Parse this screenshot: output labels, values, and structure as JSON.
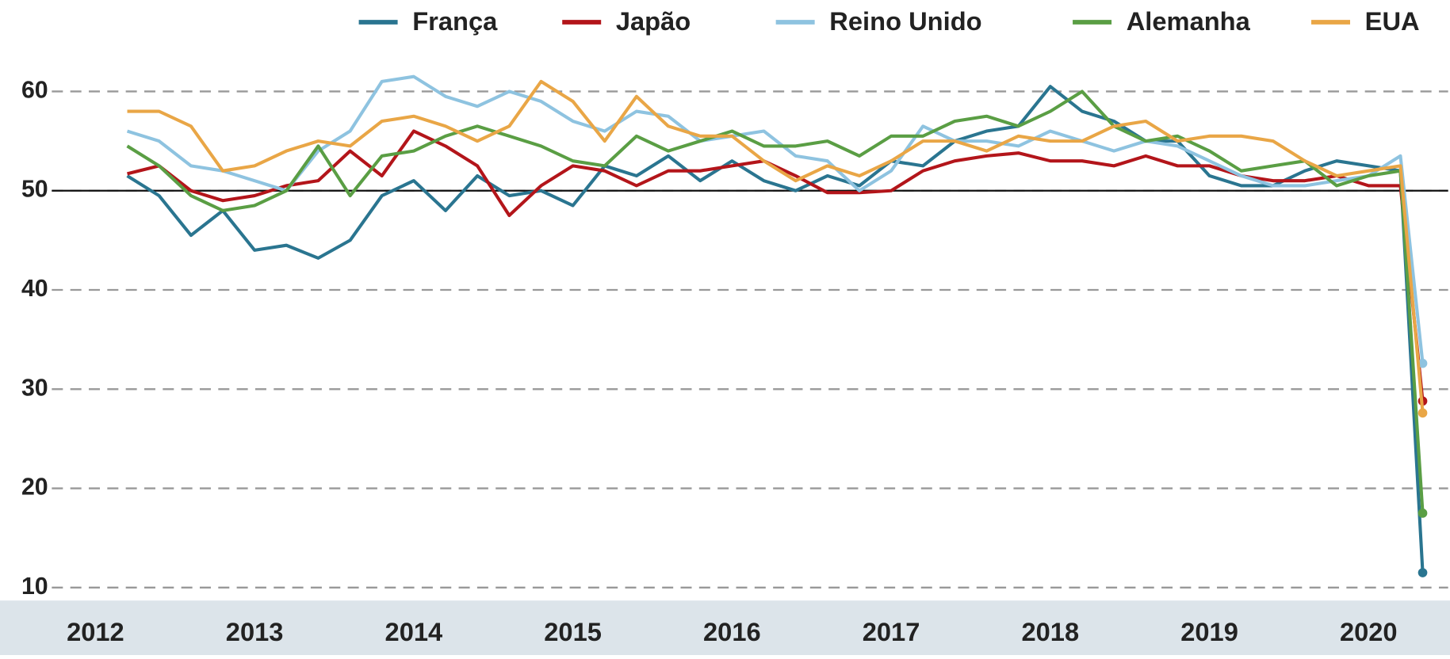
{
  "chart_data": {
    "type": "line",
    "x": [
      2012.2,
      2012.4,
      2012.6,
      2012.8,
      2013.0,
      2013.2,
      2013.4,
      2013.6,
      2013.8,
      2014.0,
      2014.2,
      2014.4,
      2014.6,
      2014.8,
      2015.0,
      2015.2,
      2015.4,
      2015.6,
      2015.8,
      2016.0,
      2016.2,
      2016.4,
      2016.6,
      2016.8,
      2017.0,
      2017.2,
      2017.4,
      2017.6,
      2017.8,
      2018.0,
      2018.2,
      2018.4,
      2018.6,
      2018.8,
      2019.0,
      2019.2,
      2019.4,
      2019.6,
      2019.8,
      2020.0,
      2020.2,
      2020.34
    ],
    "series": [
      {
        "name": "França",
        "color": "#2a7590",
        "values": [
          51.5,
          49.5,
          45.5,
          48,
          44,
          44.5,
          43.2,
          45,
          49.5,
          51,
          48,
          51.5,
          49.5,
          50,
          48.5,
          52.5,
          51.5,
          53.5,
          51,
          53,
          51,
          50,
          51.5,
          50.5,
          53,
          52.5,
          55,
          56,
          56.5,
          60.5,
          58,
          57,
          55,
          55,
          51.5,
          50.5,
          50.5,
          52,
          53,
          52.5,
          52,
          11.5
        ]
      },
      {
        "name": "Japão",
        "color": "#b3151a",
        "values": [
          51.7,
          52.5,
          50,
          49,
          49.5,
          50.5,
          51,
          54,
          51.5,
          56,
          54.5,
          52.5,
          47.5,
          50.5,
          52.5,
          52,
          50.5,
          52,
          52,
          52.5,
          53,
          51.5,
          49.8,
          49.8,
          50,
          52,
          53,
          53.5,
          53.8,
          53,
          53,
          52.5,
          53.5,
          52.5,
          52.5,
          51.5,
          51,
          51,
          51.5,
          50.5,
          50.5,
          28.8
        ]
      },
      {
        "name": "Reino Unido",
        "color": "#8ec3e0",
        "values": [
          56,
          55,
          52.5,
          52,
          51,
          50,
          54,
          56,
          61,
          61.5,
          59.5,
          58.5,
          60,
          59,
          57,
          56,
          58,
          57.5,
          55,
          55.5,
          56,
          53.5,
          53,
          50,
          52,
          56.5,
          55,
          55,
          54.5,
          56,
          55,
          54,
          55,
          54.5,
          53,
          51.5,
          50.5,
          50.5,
          51,
          51.5,
          53.5,
          32.6
        ]
      },
      {
        "name": "Alemanha",
        "color": "#5a9e44",
        "values": [
          54.5,
          52.5,
          49.5,
          48,
          48.5,
          50,
          54.5,
          49.5,
          53.5,
          54,
          55.5,
          56.5,
          55.5,
          54.5,
          53,
          52.5,
          55.5,
          54,
          55,
          56,
          54.5,
          54.5,
          55,
          53.5,
          55.5,
          55.5,
          57,
          57.5,
          56.5,
          58,
          60,
          56.5,
          55,
          55.5,
          54,
          52,
          52.5,
          53,
          50.5,
          51.5,
          52,
          17.5
        ]
      },
      {
        "name": "EUA",
        "color": "#e9a646",
        "values": [
          58,
          58,
          56.5,
          52,
          52.5,
          54,
          55,
          54.5,
          57,
          57.5,
          56.5,
          55,
          56.5,
          61,
          59,
          55,
          59.5,
          56.5,
          55.5,
          55.5,
          53,
          51,
          52.5,
          51.5,
          53,
          55,
          55,
          54,
          55.5,
          55,
          55,
          56.5,
          57,
          55,
          55.5,
          55.5,
          55,
          53,
          51.5,
          52,
          52.5,
          27.6
        ]
      }
    ],
    "xlim": [
      2011.9,
      2020.5
    ],
    "xticks": [
      2012,
      2013,
      2014,
      2015,
      2016,
      2017,
      2018,
      2019,
      2020
    ],
    "ylim": [
      10,
      62
    ],
    "yticks": [
      10,
      20,
      30,
      40,
      50,
      60
    ],
    "reference_line": 50,
    "grid": true,
    "legend": "top"
  }
}
